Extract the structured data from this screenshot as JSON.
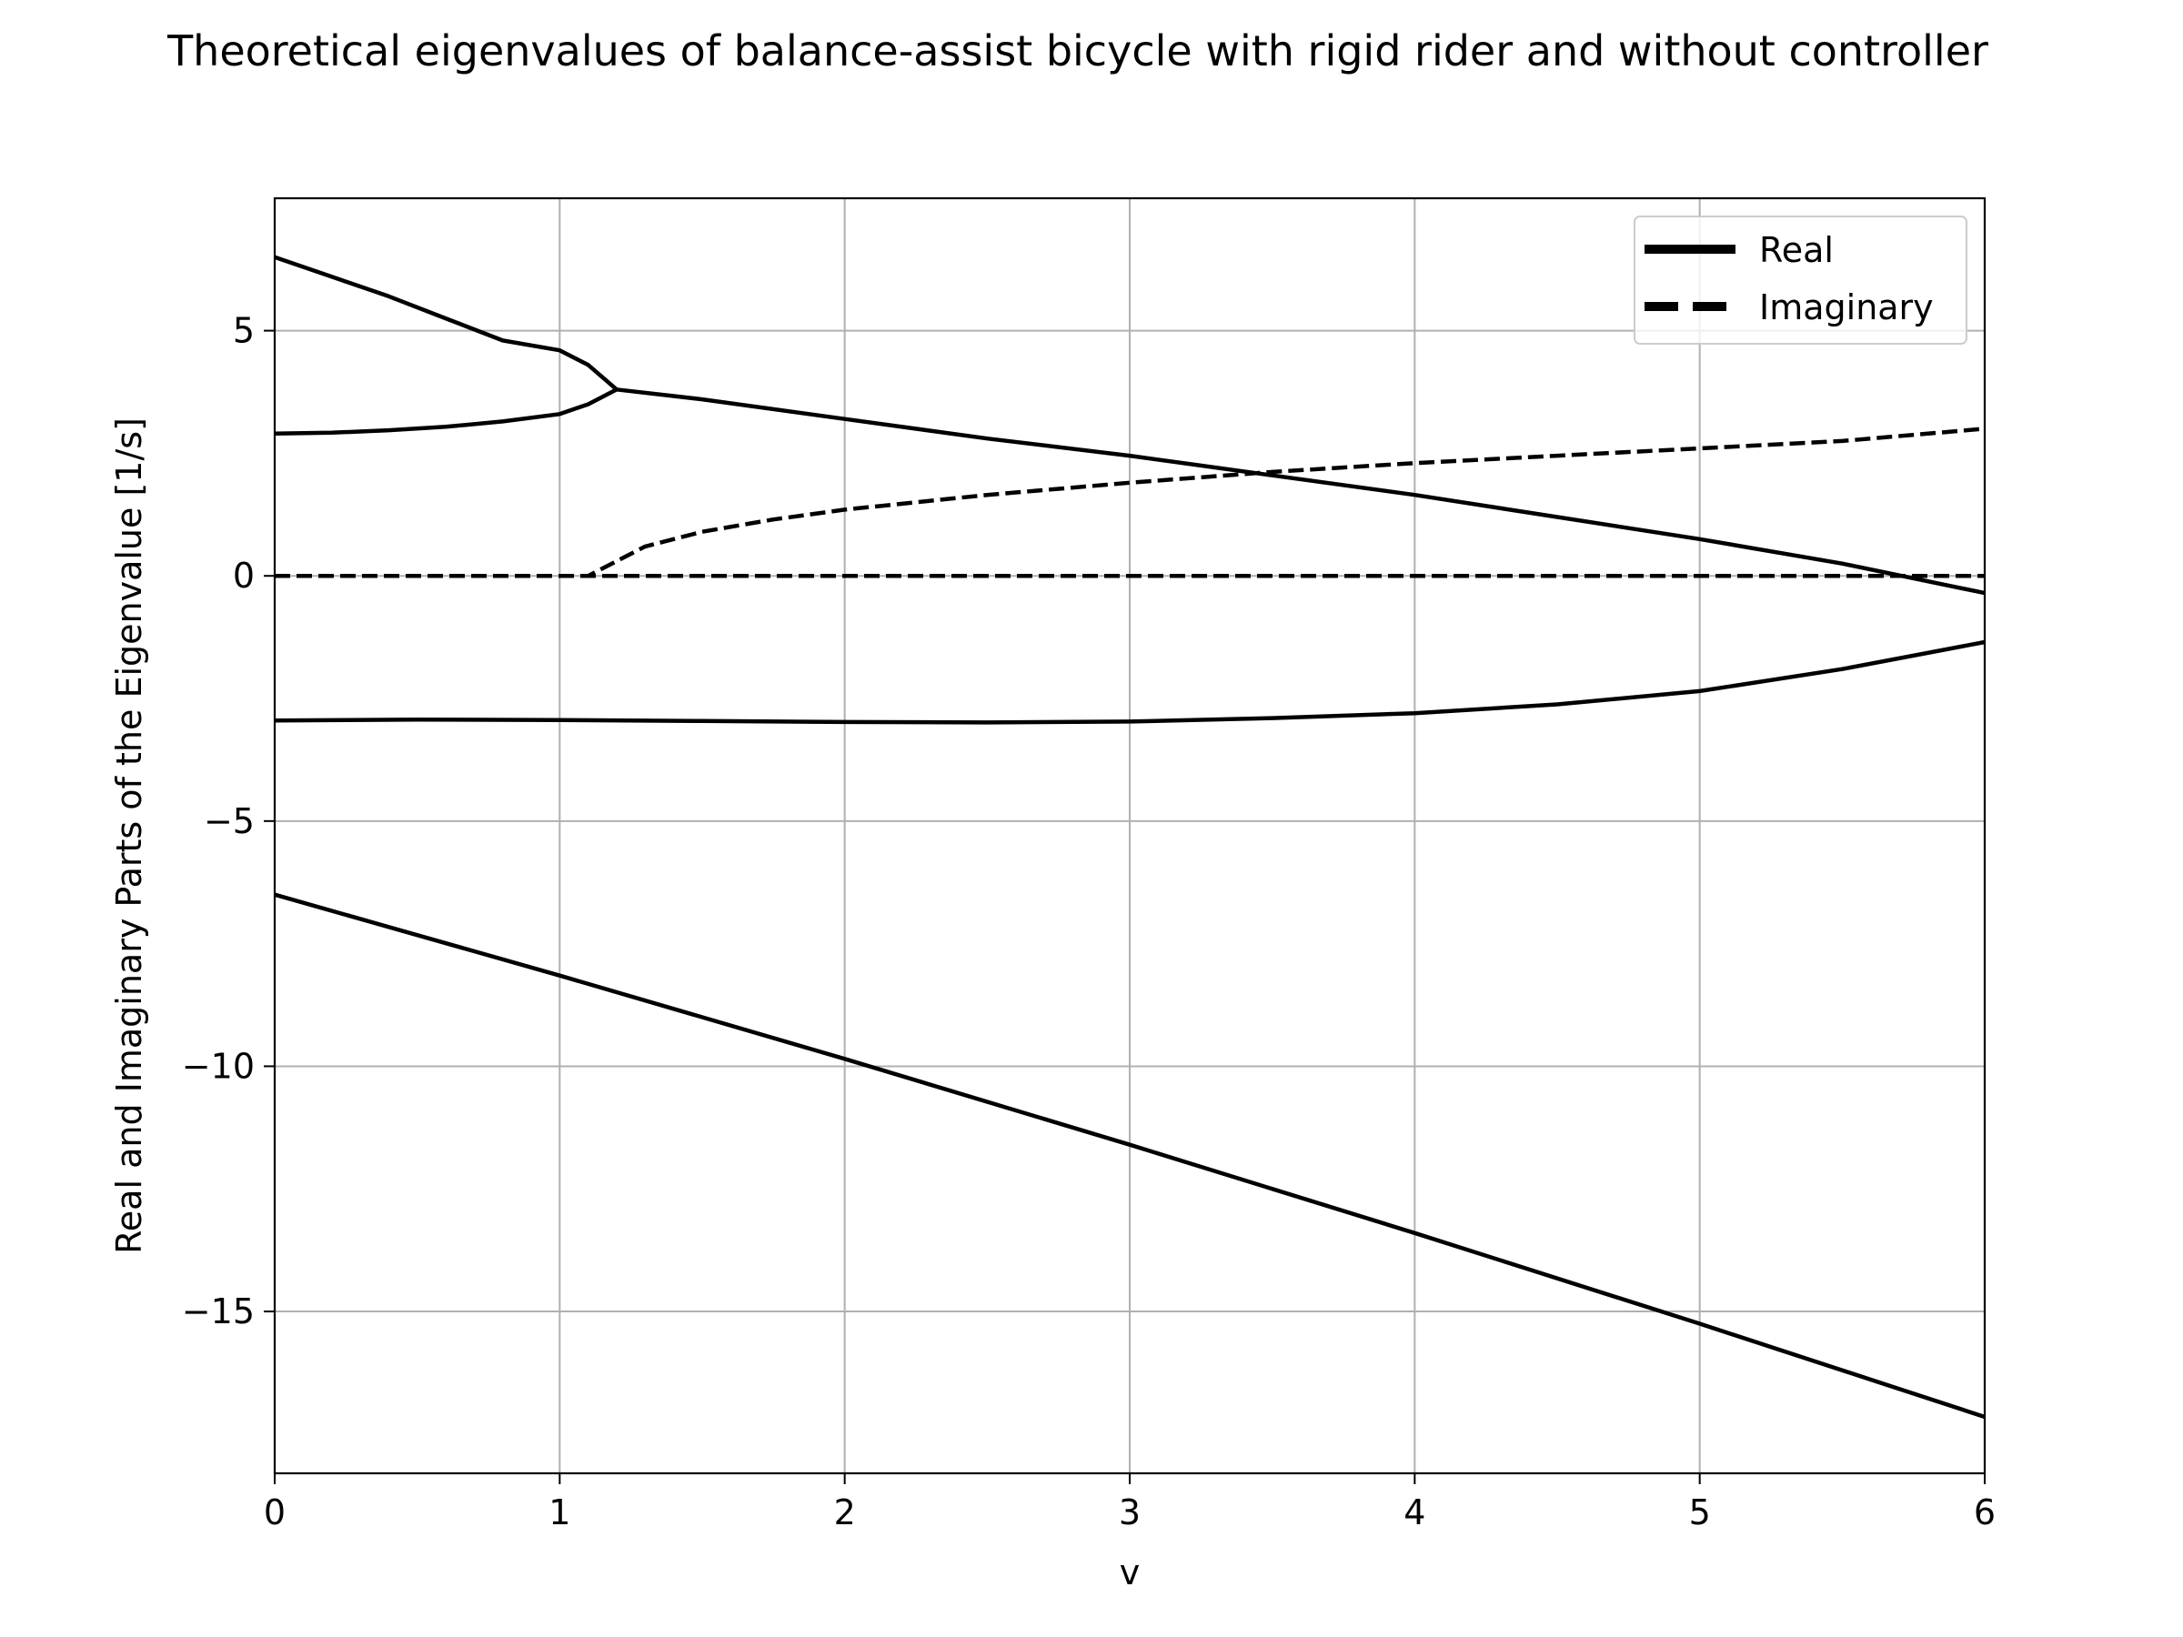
{
  "chart_data": {
    "type": "line",
    "title": "Theoretical eigenvalues of balance-assist bicycle with rigid rider and without controller",
    "xlabel": "v",
    "ylabel": "Real and Imaginary Parts of the Eigenvalue [1/s]",
    "xlim": [
      0,
      6
    ],
    "ylim": [
      -18.3,
      7.7
    ],
    "xticks": [
      0,
      1,
      2,
      3,
      4,
      5,
      6
    ],
    "xtick_labels": [
      "0",
      "1",
      "2",
      "3",
      "4",
      "5",
      "6"
    ],
    "yticks": [
      -15,
      -10,
      -5,
      0,
      5
    ],
    "ytick_labels": [
      "−15",
      "−10",
      "−5",
      "0",
      "5"
    ],
    "grid": true,
    "legend_position": "upper right",
    "legend": [
      {
        "label": "Real",
        "style": "solid"
      },
      {
        "label": "Imaginary",
        "style": "dashed"
      }
    ],
    "line_color": "#000000",
    "grid_color": "#b0b0b0",
    "series": [
      {
        "kind": "real",
        "style": "solid",
        "x": [
          0,
          0.2,
          0.4,
          0.6,
          0.8,
          1.0,
          1.1,
          1.2
        ],
        "y": [
          6.5,
          6.1,
          5.7,
          5.25,
          4.8,
          4.6,
          4.3,
          3.8
        ]
      },
      {
        "kind": "real",
        "style": "solid",
        "x": [
          0,
          0.2,
          0.4,
          0.6,
          0.8,
          1.0,
          1.1,
          1.2,
          1.5,
          2.0,
          2.5,
          3.0,
          3.5,
          4.0,
          4.5,
          5.0,
          5.5,
          6.0
        ],
        "y": [
          2.9,
          2.92,
          2.97,
          3.04,
          3.15,
          3.3,
          3.5,
          3.8,
          3.6,
          3.2,
          2.8,
          2.45,
          2.05,
          1.65,
          1.2,
          0.75,
          0.25,
          -0.35
        ]
      },
      {
        "kind": "real",
        "style": "solid",
        "x": [
          0,
          0.5,
          1.0,
          1.5,
          2.0,
          2.5,
          3.0,
          3.5,
          4.0,
          4.5,
          5.0,
          5.5,
          6.0
        ],
        "y": [
          -2.95,
          -2.93,
          -2.94,
          -2.96,
          -2.98,
          -2.99,
          -2.97,
          -2.9,
          -2.8,
          -2.62,
          -2.35,
          -1.9,
          -1.35
        ]
      },
      {
        "kind": "real",
        "style": "solid",
        "x": [
          0,
          1.0,
          2.0,
          3.0,
          4.0,
          5.0,
          6.0
        ],
        "y": [
          -6.5,
          -8.15,
          -9.85,
          -11.6,
          -13.4,
          -15.25,
          -17.15
        ]
      },
      {
        "kind": "imaginary",
        "style": "dashed",
        "x": [
          0,
          1.1,
          1.2,
          1.3,
          1.5,
          1.75,
          2.0,
          2.5,
          3.0,
          3.5,
          4.0,
          4.5,
          5.0,
          5.5,
          6.0
        ],
        "y": [
          0,
          0,
          0.3,
          0.6,
          0.9,
          1.15,
          1.35,
          1.65,
          1.9,
          2.12,
          2.3,
          2.45,
          2.6,
          2.75,
          3.0
        ]
      },
      {
        "kind": "imaginary",
        "style": "dashed",
        "x": [
          0,
          6.0
        ],
        "y": [
          0,
          0
        ]
      }
    ]
  }
}
